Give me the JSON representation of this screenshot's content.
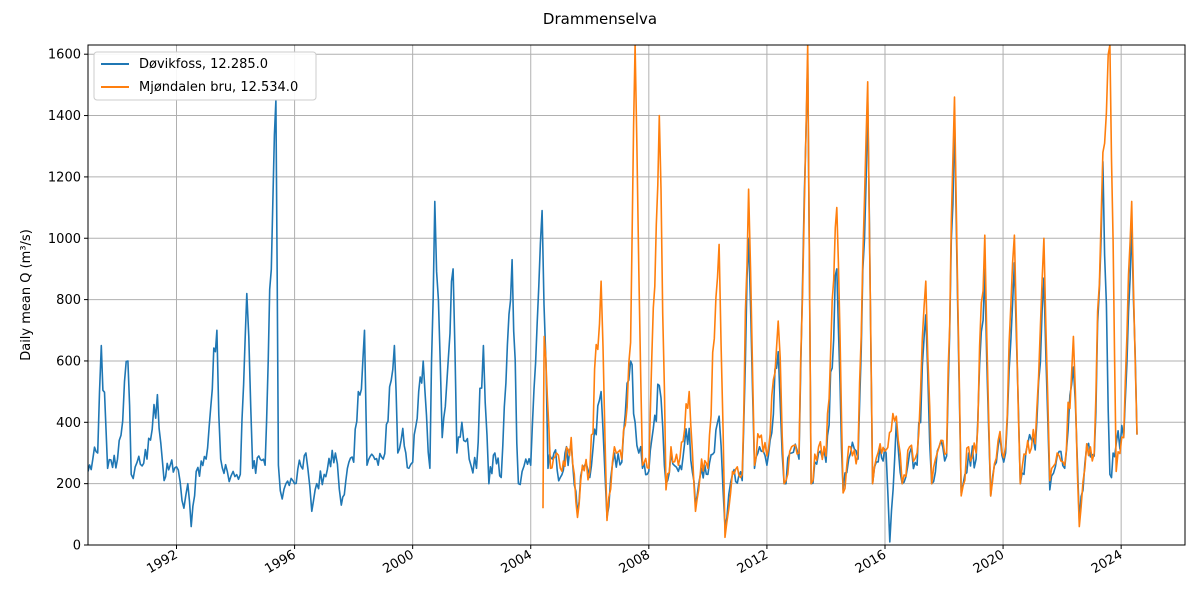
{
  "chart_data": {
    "type": "line",
    "title": "Drammenselva",
    "xlabel": "",
    "ylabel": "Daily mean Q (m³/s)",
    "xlim": [
      "1989-01-01",
      "2026-03-01"
    ],
    "ylim": [
      0,
      1630
    ],
    "xticks": [
      {
        "date": "1992-01-01",
        "label": "1992"
      },
      {
        "date": "1996-01-01",
        "label": "1996"
      },
      {
        "date": "2000-01-01",
        "label": "2000"
      },
      {
        "date": "2004-01-01",
        "label": "2004"
      },
      {
        "date": "2008-01-01",
        "label": "2008"
      },
      {
        "date": "2012-01-01",
        "label": "2012"
      },
      {
        "date": "2016-01-01",
        "label": "2016"
      },
      {
        "date": "2020-01-01",
        "label": "2020"
      },
      {
        "date": "2024-01-01",
        "label": "2024"
      }
    ],
    "yticks": [
      0,
      200,
      400,
      600,
      800,
      1000,
      1200,
      1400,
      1600
    ],
    "grid": true,
    "legend_position": "upper-left",
    "series": [
      {
        "name": "Døvikfoss, 12.285.0",
        "color": "#1f77b4",
        "x": [
          "1989-01-01",
          "1989-05-01",
          "1989-06-15",
          "1989-09-01",
          "1990-01-01",
          "1990-05-10",
          "1990-06-20",
          "1990-09-01",
          "1991-01-01",
          "1991-05-10",
          "1991-08-01",
          "1991-10-15",
          "1992-01-01",
          "1992-04-01",
          "1992-05-20",
          "1992-07-01",
          "1992-09-01",
          "1993-01-01",
          "1993-05-15",
          "1993-07-01",
          "1993-09-20",
          "1993-12-01",
          "1994-03-01",
          "1994-05-20",
          "1994-08-01",
          "1994-10-15",
          "1995-01-01",
          "1995-05-15",
          "1995-06-15",
          "1995-08-01",
          "1995-09-15",
          "1996-01-01",
          "1996-05-20",
          "1996-08-01",
          "1996-10-01",
          "1997-01-01",
          "1997-05-20",
          "1997-08-01",
          "1997-10-15",
          "1998-01-01",
          "1998-05-15",
          "1998-06-15",
          "1998-09-01",
          "1998-11-01",
          "1999-01-01",
          "1999-05-20",
          "1999-07-01",
          "1999-09-01",
          "1999-11-15",
          "2000-01-01",
          "2000-05-10",
          "2000-08-01",
          "2000-10-01",
          "2000-11-15",
          "2001-01-01",
          "2001-05-15",
          "2001-07-01",
          "2001-09-01",
          "2001-12-01",
          "2002-03-01",
          "2002-05-25",
          "2002-08-01",
          "2002-10-15",
          "2003-01-01",
          "2003-05-15",
          "2003-08-01",
          "2003-11-01",
          "2004-01-01",
          "2004-05-20",
          "2004-08-01",
          "2004-10-15",
          "2005-01-01",
          "2005-05-15",
          "2005-08-01",
          "2005-10-01",
          "2006-01-01",
          "2006-05-20",
          "2006-08-01",
          "2006-11-01",
          "2007-02-01",
          "2007-05-20",
          "2007-07-15",
          "2007-10-15",
          "2008-01-01",
          "2008-05-10",
          "2008-08-01",
          "2008-10-01",
          "2009-01-01",
          "2009-05-15",
          "2009-08-01",
          "2009-10-15",
          "2010-01-01",
          "2010-05-20",
          "2010-08-01",
          "2010-11-01",
          "2011-03-01",
          "2011-05-20",
          "2011-08-01",
          "2011-10-01",
          "2012-01-01",
          "2012-05-20",
          "2012-08-01",
          "2012-11-01",
          "2013-02-01",
          "2013-05-20",
          "2013-07-01",
          "2013-10-01",
          "2014-01-01",
          "2014-05-15",
          "2014-08-01",
          "2014-11-01",
          "2015-02-01",
          "2015-06-01",
          "2015-08-01",
          "2015-11-01",
          "2016-01-15",
          "2016-03-01",
          "2016-05-20",
          "2016-08-01",
          "2016-11-01",
          "2017-02-01",
          "2017-05-20",
          "2017-08-01",
          "2017-11-01",
          "2018-02-01",
          "2018-05-10",
          "2018-08-01",
          "2018-11-01",
          "2019-02-01",
          "2019-05-20",
          "2019-08-01",
          "2019-11-01",
          "2020-02-01",
          "2020-05-20",
          "2020-08-01",
          "2020-11-01",
          "2021-02-01",
          "2021-05-20",
          "2021-08-01",
          "2021-11-01",
          "2022-02-01",
          "2022-05-20",
          "2022-08-01",
          "2022-11-01",
          "2023-02-01",
          "2023-05-20",
          "2023-08-15",
          "2023-11-01",
          "2024-02-01",
          "2024-05-10",
          "2024-07-15"
        ],
        "y": [
          240,
          300,
          650,
          250,
          280,
          600,
          230,
          270,
          280,
          490,
          210,
          260,
          255,
          120,
          200,
          60,
          240,
          280,
          700,
          280,
          240,
          240,
          230,
          820,
          250,
          290,
          260,
          1450,
          260,
          150,
          200,
          200,
          300,
          110,
          200,
          230,
          300,
          130,
          250,
          270,
          700,
          260,
          290,
          260,
          280,
          650,
          300,
          380,
          250,
          270,
          600,
          250,
          1120,
          800,
          350,
          900,
          300,
          400,
          280,
          250,
          650,
          200,
          300,
          220,
          930,
          200,
          280,
          260,
          1090,
          250,
          300,
          220,
          330,
          100,
          250,
          220,
          500,
          90,
          300,
          270,
          600,
          400,
          250,
          240,
          520,
          200,
          300,
          240,
          380,
          130,
          250,
          230,
          420,
          60,
          230,
          210,
          1000,
          250,
          320,
          260,
          630,
          200,
          300,
          280,
          1580,
          200,
          300,
          270,
          900,
          180,
          300,
          280,
          1450,
          200,
          320,
          300,
          10,
          400,
          200,
          300,
          260,
          750,
          200,
          320,
          290,
          1400,
          170,
          300,
          280,
          900,
          160,
          320,
          300,
          920,
          200,
          330,
          310,
          870,
          180,
          290,
          250,
          580,
          80,
          320,
          290,
          1250,
          230,
          330,
          350,
          1050,
          360
        ]
      },
      {
        "name": "Mjøndalen bru, 12.534.0",
        "color": "#ff7f0e",
        "x": [
          "2004-06-01",
          "2004-06-15",
          "2004-09-01",
          "2004-11-15",
          "2005-01-01",
          "2005-05-15",
          "2005-08-01",
          "2005-10-01",
          "2006-01-01",
          "2006-05-20",
          "2006-08-01",
          "2006-11-01",
          "2007-02-01",
          "2007-05-20",
          "2007-07-15",
          "2007-10-15",
          "2008-01-01",
          "2008-05-10",
          "2008-08-01",
          "2008-10-01",
          "2009-01-01",
          "2009-05-15",
          "2009-08-01",
          "2009-10-15",
          "2010-01-01",
          "2010-05-20",
          "2010-08-01",
          "2010-11-01",
          "2011-03-01",
          "2011-05-20",
          "2011-08-01",
          "2011-10-01",
          "2012-01-01",
          "2012-05-20",
          "2012-08-01",
          "2012-11-01",
          "2013-02-01",
          "2013-05-20",
          "2013-07-01",
          "2013-10-01",
          "2014-01-01",
          "2014-05-15",
          "2014-08-01",
          "2014-11-01",
          "2015-02-01",
          "2015-06-01",
          "2015-08-01",
          "2015-11-01",
          "2016-01-15",
          "2016-05-20",
          "2016-08-01",
          "2016-11-01",
          "2017-02-01",
          "2017-05-20",
          "2017-08-01",
          "2017-11-01",
          "2018-02-01",
          "2018-05-10",
          "2018-08-01",
          "2018-11-01",
          "2019-02-01",
          "2019-05-20",
          "2019-08-01",
          "2019-11-01",
          "2020-02-01",
          "2020-05-20",
          "2020-08-01",
          "2020-11-01",
          "2021-02-01",
          "2021-05-20",
          "2021-08-01",
          "2021-11-01",
          "2022-02-01",
          "2022-05-20",
          "2022-08-01",
          "2022-11-01",
          "2023-02-01",
          "2023-05-20",
          "2023-08-15",
          "2023-11-01",
          "2024-02-01",
          "2024-05-10",
          "2024-07-15"
        ],
        "y": [
          120,
          680,
          250,
          300,
          250,
          350,
          90,
          260,
          240,
          860,
          80,
          320,
          280,
          660,
          1630,
          260,
          250,
          1400,
          180,
          320,
          260,
          500,
          110,
          280,
          250,
          980,
          25,
          240,
          230,
          1160,
          260,
          350,
          290,
          730,
          200,
          320,
          300,
          1630,
          200,
          320,
          290,
          1100,
          170,
          320,
          300,
          1510,
          200,
          330,
          310,
          420,
          200,
          320,
          300,
          860,
          200,
          320,
          300,
          1460,
          160,
          320,
          300,
          1010,
          160,
          340,
          320,
          1010,
          200,
          340,
          330,
          1000,
          210,
          300,
          260,
          680,
          60,
          330,
          300,
          1280,
          1630,
          240,
          350,
          1120,
          360
        ]
      }
    ]
  }
}
